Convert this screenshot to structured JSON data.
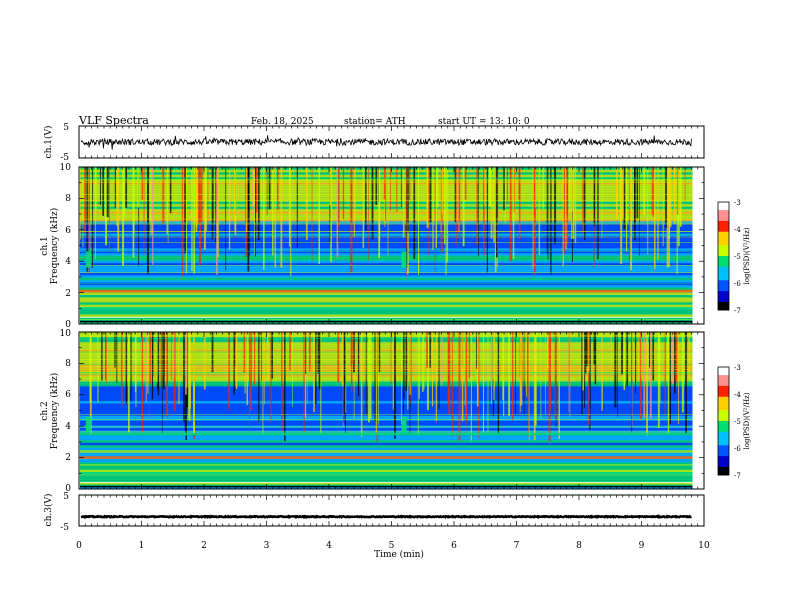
{
  "header": {
    "title": "VLF  Spectra",
    "date": "Feb. 18, 2025",
    "station": "station= ATH",
    "start": "start  UT  =   13: 10: 0"
  },
  "colors": {
    "background": "#ffffff",
    "axis": "#000000",
    "colormap": [
      "#000000",
      "#0000cc",
      "#0055ff",
      "#00c0ff",
      "#00e070",
      "#c8ff00",
      "#ffd000",
      "#ff2000",
      "#ff9090",
      "#ffffff"
    ]
  },
  "chart_data": [
    {
      "type": "line",
      "ylabel": "ch.1(V)",
      "ylim": [
        -5,
        5
      ],
      "yticks": [
        "5",
        "-5"
      ],
      "xlim": [
        0,
        10
      ],
      "baseline_value": 0,
      "amplitude_approx": 1
    },
    {
      "type": "heatmap",
      "ylabel": "ch.1\nFrequency  (kHz)",
      "ylabel_lines": [
        "ch.1",
        "Frequency  (kHz)"
      ],
      "ylim": [
        0,
        10
      ],
      "yticks": [
        "0",
        "2",
        "4",
        "6",
        "8",
        "10"
      ],
      "xlim": [
        0,
        9.8
      ],
      "colorbar": {
        "label": "log(PSD)(V²/Hz)",
        "range": [
          -7,
          -3
        ],
        "ticks": [
          "-3",
          "-4",
          "-5",
          "-6",
          "-7"
        ]
      },
      "features": {
        "strong_bands_khz": [
          2.1,
          1.0
        ],
        "transmitter_burst_times_min": [
          0.15,
          5.2
        ]
      }
    },
    {
      "type": "heatmap",
      "ylabel": "ch.2\nFrequency  (kHz)",
      "ylabel_lines": [
        "ch.2",
        "Frequency  (kHz)"
      ],
      "ylim": [
        0,
        10
      ],
      "yticks": [
        "0",
        "2",
        "4",
        "6",
        "8",
        "10"
      ],
      "xlim": [
        0,
        9.8
      ],
      "colorbar": {
        "label": "log(PSD)(V²/Hz)",
        "range": [
          -7,
          -3
        ],
        "ticks": [
          "-3",
          "-4",
          "-5",
          "-6",
          "-7"
        ]
      },
      "features": {
        "strong_bands_khz": [
          2.0,
          3.5,
          1.0
        ],
        "transmitter_burst_times_min": [
          0.15,
          5.2
        ]
      }
    },
    {
      "type": "line",
      "ylabel": "ch.3(V)",
      "ylim": [
        -5,
        5
      ],
      "yticks": [
        "5",
        "-5"
      ],
      "xlim": [
        0,
        10
      ],
      "baseline_value": -2,
      "amplitude_approx": 0.15
    }
  ],
  "xaxis": {
    "label": "Time  (min)",
    "ticks": [
      "0",
      "1",
      "2",
      "3",
      "4",
      "5",
      "6",
      "7",
      "8",
      "9",
      "10"
    ],
    "range": [
      0,
      10
    ]
  }
}
